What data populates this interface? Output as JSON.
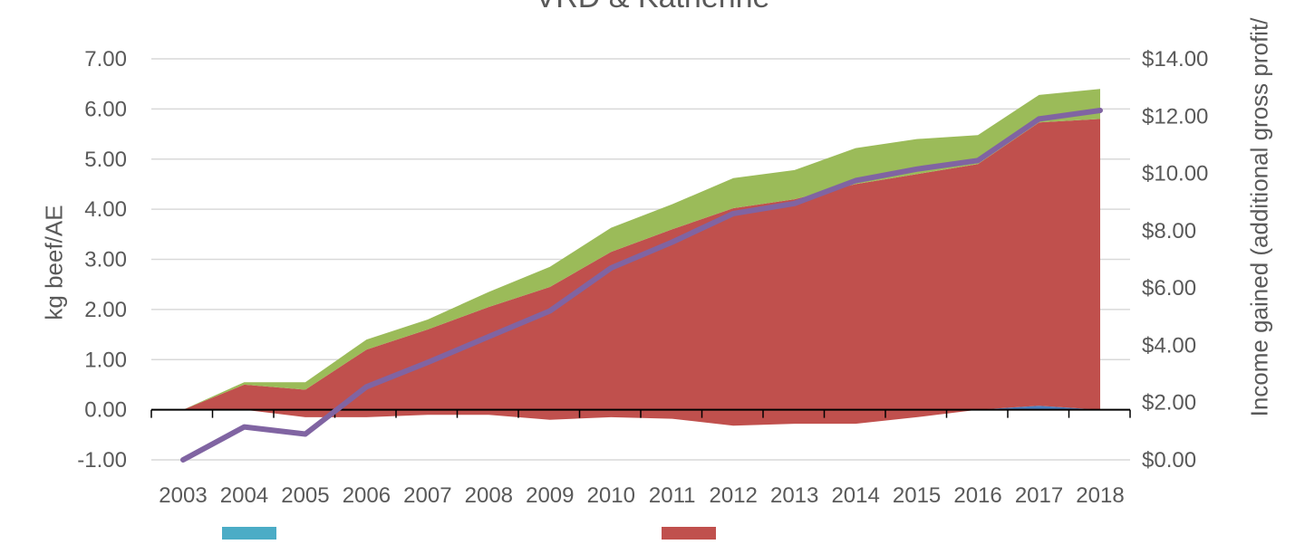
{
  "chart_data": {
    "type": "area",
    "title": "VRD & Katherine",
    "categories": [
      "2003",
      "2004",
      "2005",
      "2006",
      "2007",
      "2008",
      "2009",
      "2010",
      "2011",
      "2012",
      "2013",
      "2014",
      "2015",
      "2016",
      "2017",
      "2018"
    ],
    "ylabel": "kg beef/AE",
    "ylabel_right": "Income gained (additional gross profit/",
    "ylim": [
      -1.0,
      7.0
    ],
    "yticks": [
      "-1.00",
      "0.00",
      "1.00",
      "2.00",
      "3.00",
      "4.00",
      "5.00",
      "6.00",
      "7.00"
    ],
    "y2lim": [
      0,
      14
    ],
    "y2ticks": [
      "$0.00",
      "$2.00",
      "$4.00",
      "$6.00",
      "$8.00",
      "$10.00",
      "$12.00",
      "$14.00"
    ],
    "stacked": true,
    "series": [
      {
        "color": "#4f81bd",
        "axis": "left",
        "render": "area",
        "values": [
          0,
          0,
          0,
          0,
          0,
          0,
          0,
          0,
          0,
          0,
          0,
          0,
          0,
          0,
          0.08,
          0
        ]
      },
      {
        "color": "#c0504d",
        "axis": "left",
        "render": "area",
        "values": [
          0,
          0.5,
          0.4,
          1.2,
          1.6,
          2.05,
          2.45,
          3.15,
          3.6,
          4.02,
          4.2,
          4.5,
          4.7,
          4.9,
          5.65,
          5.8
        ]
      },
      {
        "color": "#9bbb59",
        "axis": "left",
        "render": "area",
        "values": [
          0,
          0.05,
          0.15,
          0.2,
          0.2,
          0.3,
          0.4,
          0.48,
          0.5,
          0.6,
          0.58,
          0.72,
          0.7,
          0.58,
          0.55,
          0.6
        ]
      },
      {
        "color": "#c0504d",
        "axis": "left",
        "render": "area-below",
        "values": [
          0,
          0,
          -0.15,
          -0.15,
          -0.1,
          -0.1,
          -0.2,
          -0.15,
          -0.18,
          -0.32,
          -0.28,
          -0.28,
          -0.15,
          0,
          0,
          0
        ]
      },
      {
        "color": "#8064a2",
        "axis": "right",
        "render": "line",
        "values": [
          0.0,
          1.15,
          0.9,
          2.55,
          3.4,
          4.3,
          5.2,
          6.7,
          7.6,
          8.6,
          8.95,
          9.75,
          10.15,
          10.45,
          11.9,
          12.2
        ]
      }
    ],
    "legend": {
      "position": "bottom",
      "entries": [
        {
          "color": "#4bacc6",
          "label": ""
        },
        {
          "color": "#c0504d",
          "label": ""
        }
      ]
    }
  }
}
